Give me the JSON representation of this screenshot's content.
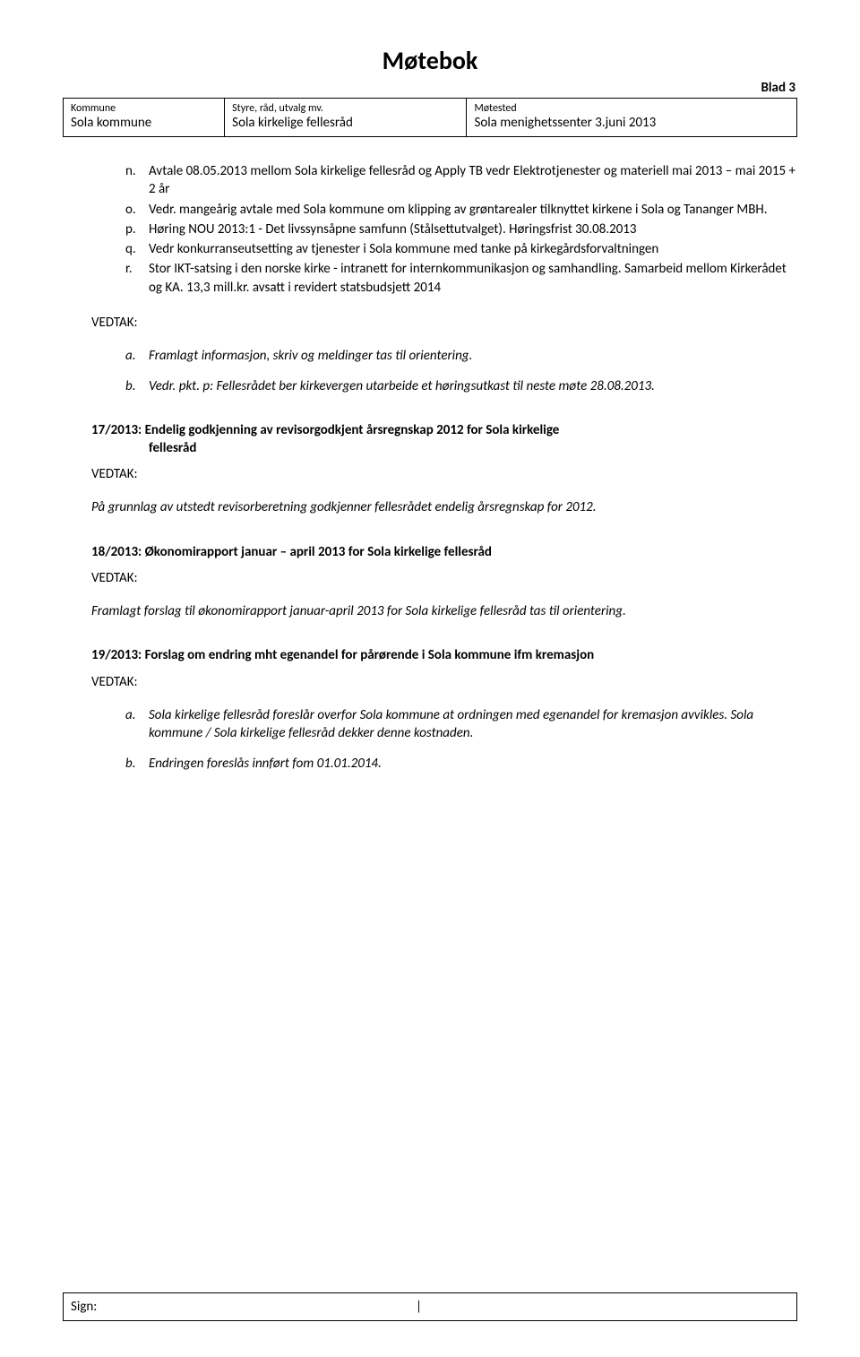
{
  "doc_title": "Møtebok",
  "blad": "Blad 3",
  "header": {
    "col1_label": "Kommune",
    "col1_value": "Sola kommune",
    "col2_label": "Styre, råd, utvalg mv.",
    "col2_value": "Sola kirkelige fellesråd",
    "col3_label": "Møtested",
    "col3_value": "Sola menighetssenter 3.juni 2013"
  },
  "items": {
    "n": "Avtale 08.05.2013 mellom Sola kirkelige fellesråd og Apply TB vedr Elektrotjenester og materiell mai 2013 – mai 2015 + 2 år",
    "o": "Vedr. mangeårig avtale med Sola kommune om klipping av grøntarealer tilknyttet kirkene i Sola og Tananger MBH.",
    "p": "Høring NOU 2013:1 - Det livssynsåpne samfunn (Stålsettutvalget). Høringsfrist 30.08.2013",
    "q": "Vedr konkurranseutsetting av tjenester i Sola kommune med tanke på kirkegårdsforvaltningen",
    "r": "Stor IKT-satsing i den norske kirke - intranett for internkommunikasjon og samhandling. Samarbeid mellom Kirkerådet og KA. 13,3 mill.kr. avsatt i revidert statsbudsjett 2014"
  },
  "vedtak_label": "VEDTAK:",
  "vedtak1": {
    "a": "Framlagt informasjon, skriv og meldinger tas til orientering.",
    "b": "Vedr. pkt. p: Fellesrådet ber kirkevergen utarbeide et høringsutkast til neste møte 28.08.2013."
  },
  "s17": {
    "heading_line1": "17/2013: Endelig godkjenning av revisorgodkjent årsregnskap 2012 for Sola kirkelige",
    "heading_line2": "fellesråd",
    "para": "På grunnlag av utstedt revisorberetning godkjenner fellesrådet endelig årsregnskap for 2012."
  },
  "s18": {
    "heading": "18/2013: Økonomirapport januar – april 2013 for Sola kirkelige fellesråd",
    "para": "Framlagt forslag til økonomirapport januar-april 2013 for Sola kirkelige fellesråd tas til orientering."
  },
  "s19": {
    "heading": "19/2013: Forslag om endring mht egenandel for pårørende i Sola kommune ifm kremasjon",
    "a": "Sola kirkelige fellesråd foreslår overfor Sola kommune at ordningen med egenandel for kremasjon avvikles. Sola kommune / Sola kirkelige fellesråd dekker denne kostnaden.",
    "b": "Endringen foreslås innført fom 01.01.2014."
  },
  "footer": {
    "sign": "Sign:",
    "sep": "|"
  }
}
